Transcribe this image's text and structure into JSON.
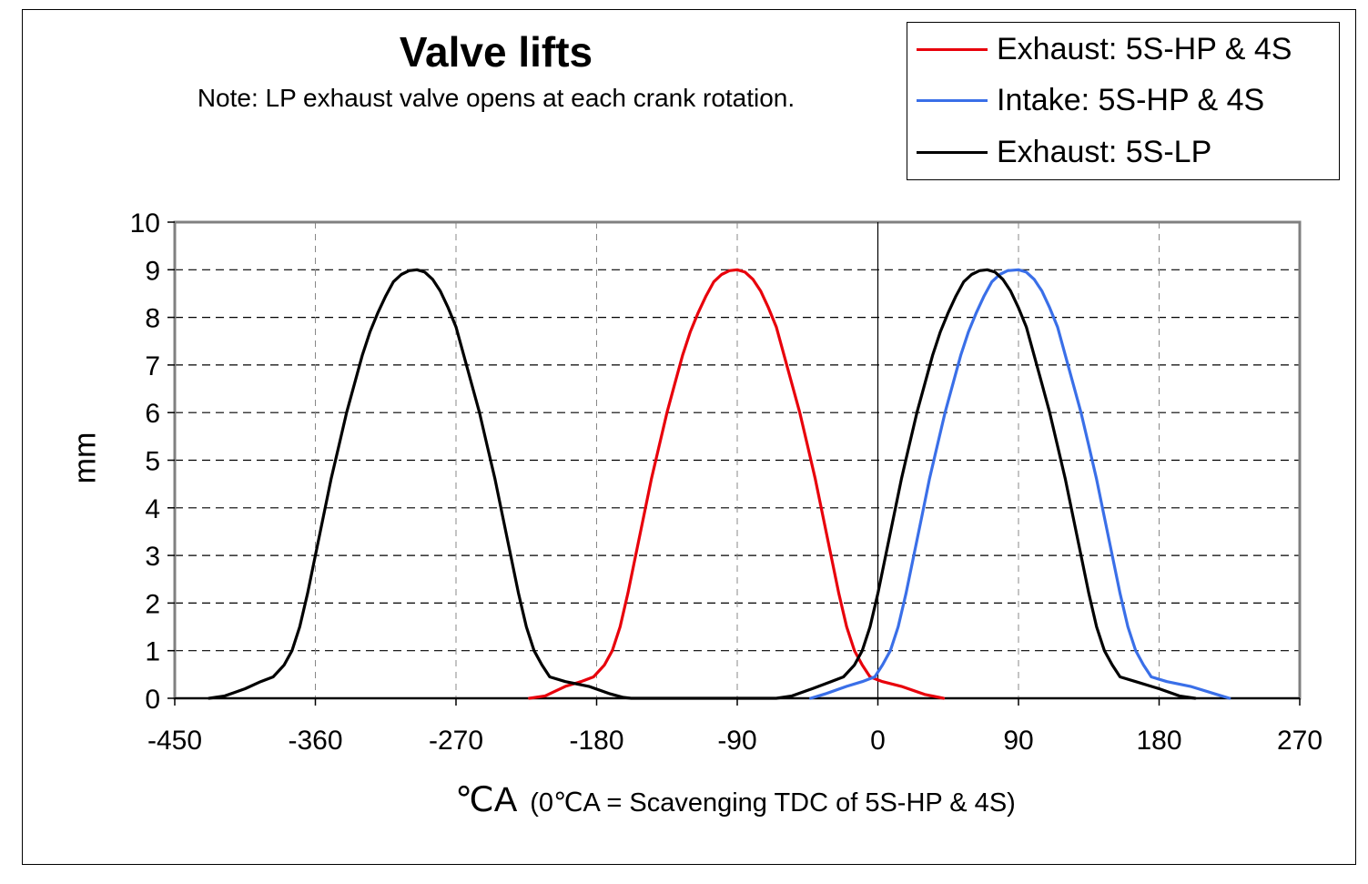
{
  "chart_data": {
    "type": "line",
    "title": "Valve lifts",
    "subtitle": "Note: LP exhaust valve opens at each crank rotation.",
    "xlabel": "℃A",
    "xlabel_note": "(0℃A = Scavenging TDC of 5S-HP & 4S)",
    "ylabel": "mm",
    "xlim": [
      -450,
      270
    ],
    "ylim": [
      0,
      10
    ],
    "x_ticks": [
      -450,
      -360,
      -270,
      -180,
      -90,
      0,
      90,
      180,
      270
    ],
    "y_ticks": [
      0,
      1,
      2,
      3,
      4,
      5,
      6,
      7,
      8,
      9,
      10
    ],
    "x_tick_labels": [
      "-450",
      "-360",
      "-270",
      "-180",
      "-90",
      "0",
      "90",
      "180",
      "270"
    ],
    "y_tick_labels": [
      "0",
      "1",
      "2",
      "3",
      "4",
      "5",
      "6",
      "7",
      "8",
      "9",
      "10"
    ],
    "grid": true,
    "legend_position": "top-right",
    "series": [
      {
        "name": "Exhaust: 5S-HP & 4S",
        "color": "#e8000b",
        "points": [
          [
            -223,
            0
          ],
          [
            -213,
            0.05
          ],
          [
            -200,
            0.25
          ],
          [
            -190,
            0.35
          ],
          [
            -182,
            0.45
          ],
          [
            -175,
            0.7
          ],
          [
            -170,
            1.0
          ],
          [
            -165,
            1.5
          ],
          [
            -160,
            2.2
          ],
          [
            -155,
            3.0
          ],
          [
            -150,
            3.8
          ],
          [
            -145,
            4.6
          ],
          [
            -140,
            5.3
          ],
          [
            -135,
            6.0
          ],
          [
            -130,
            6.6
          ],
          [
            -125,
            7.2
          ],
          [
            -120,
            7.7
          ],
          [
            -115,
            8.1
          ],
          [
            -110,
            8.45
          ],
          [
            -105,
            8.75
          ],
          [
            -100,
            8.9
          ],
          [
            -95,
            8.98
          ],
          [
            -90,
            9.0
          ],
          [
            -85,
            8.95
          ],
          [
            -80,
            8.8
          ],
          [
            -75,
            8.55
          ],
          [
            -70,
            8.2
          ],
          [
            -65,
            7.8
          ],
          [
            -60,
            7.2
          ],
          [
            -55,
            6.6
          ],
          [
            -50,
            6.0
          ],
          [
            -45,
            5.3
          ],
          [
            -40,
            4.6
          ],
          [
            -35,
            3.8
          ],
          [
            -30,
            3.0
          ],
          [
            -25,
            2.2
          ],
          [
            -20,
            1.5
          ],
          [
            -15,
            1.0
          ],
          [
            -10,
            0.7
          ],
          [
            -5,
            0.45
          ],
          [
            3,
            0.35
          ],
          [
            15,
            0.25
          ],
          [
            30,
            0.08
          ],
          [
            42,
            0
          ]
        ]
      },
      {
        "name": "Intake: 5S-HP & 4S",
        "color": "#3a6fe8",
        "points": [
          [
            -43,
            0
          ],
          [
            -33,
            0.1
          ],
          [
            -20,
            0.25
          ],
          [
            -10,
            0.35
          ],
          [
            -2,
            0.45
          ],
          [
            3,
            0.7
          ],
          [
            8,
            1.0
          ],
          [
            13,
            1.5
          ],
          [
            18,
            2.2
          ],
          [
            23,
            3.0
          ],
          [
            28,
            3.8
          ],
          [
            33,
            4.6
          ],
          [
            38,
            5.3
          ],
          [
            43,
            6.0
          ],
          [
            48,
            6.6
          ],
          [
            53,
            7.2
          ],
          [
            58,
            7.7
          ],
          [
            63,
            8.1
          ],
          [
            68,
            8.45
          ],
          [
            73,
            8.75
          ],
          [
            78,
            8.9
          ],
          [
            83,
            8.98
          ],
          [
            90,
            9.0
          ],
          [
            95,
            8.95
          ],
          [
            100,
            8.8
          ],
          [
            105,
            8.55
          ],
          [
            110,
            8.2
          ],
          [
            115,
            7.8
          ],
          [
            120,
            7.2
          ],
          [
            125,
            6.6
          ],
          [
            130,
            6.0
          ],
          [
            135,
            5.3
          ],
          [
            140,
            4.6
          ],
          [
            145,
            3.8
          ],
          [
            150,
            3.0
          ],
          [
            155,
            2.2
          ],
          [
            160,
            1.5
          ],
          [
            165,
            1.0
          ],
          [
            170,
            0.7
          ],
          [
            175,
            0.45
          ],
          [
            185,
            0.35
          ],
          [
            200,
            0.25
          ],
          [
            215,
            0.1
          ],
          [
            225,
            0
          ]
        ]
      },
      {
        "name": "Exhaust: 5S-LP",
        "color": "#000000",
        "points": [
          [
            -428,
            0
          ],
          [
            -418,
            0.05
          ],
          [
            -405,
            0.2
          ],
          [
            -395,
            0.35
          ],
          [
            -387,
            0.45
          ],
          [
            -380,
            0.7
          ],
          [
            -375,
            1.0
          ],
          [
            -370,
            1.5
          ],
          [
            -365,
            2.2
          ],
          [
            -360,
            3.0
          ],
          [
            -355,
            3.8
          ],
          [
            -350,
            4.6
          ],
          [
            -345,
            5.3
          ],
          [
            -340,
            6.0
          ],
          [
            -335,
            6.6
          ],
          [
            -330,
            7.2
          ],
          [
            -325,
            7.7
          ],
          [
            -320,
            8.1
          ],
          [
            -315,
            8.45
          ],
          [
            -310,
            8.75
          ],
          [
            -305,
            8.9
          ],
          [
            -300,
            8.98
          ],
          [
            -295,
            9.0
          ],
          [
            -290,
            8.95
          ],
          [
            -285,
            8.8
          ],
          [
            -280,
            8.55
          ],
          [
            -275,
            8.2
          ],
          [
            -270,
            7.8
          ],
          [
            -265,
            7.2
          ],
          [
            -260,
            6.6
          ],
          [
            -255,
            6.0
          ],
          [
            -250,
            5.3
          ],
          [
            -245,
            4.6
          ],
          [
            -240,
            3.8
          ],
          [
            -235,
            3.0
          ],
          [
            -230,
            2.2
          ],
          [
            -225,
            1.5
          ],
          [
            -220,
            1.0
          ],
          [
            -215,
            0.7
          ],
          [
            -210,
            0.45
          ],
          [
            -200,
            0.35
          ],
          [
            -185,
            0.25
          ],
          [
            -172,
            0.1
          ],
          [
            -163,
            0.02
          ],
          [
            -158,
            0
          ],
          [
            -65,
            0
          ],
          [
            -55,
            0.05
          ],
          [
            -42,
            0.2
          ],
          [
            -30,
            0.35
          ],
          [
            -22,
            0.45
          ],
          [
            -15,
            0.7
          ],
          [
            -10,
            1.0
          ],
          [
            -5,
            1.5
          ],
          [
            0,
            2.2
          ],
          [
            5,
            3.0
          ],
          [
            10,
            3.8
          ],
          [
            15,
            4.6
          ],
          [
            20,
            5.3
          ],
          [
            25,
            6.0
          ],
          [
            30,
            6.6
          ],
          [
            35,
            7.2
          ],
          [
            40,
            7.7
          ],
          [
            45,
            8.1
          ],
          [
            50,
            8.45
          ],
          [
            55,
            8.75
          ],
          [
            60,
            8.9
          ],
          [
            65,
            8.98
          ],
          [
            70,
            9.0
          ],
          [
            75,
            8.95
          ],
          [
            80,
            8.8
          ],
          [
            85,
            8.55
          ],
          [
            90,
            8.2
          ],
          [
            95,
            7.8
          ],
          [
            100,
            7.2
          ],
          [
            105,
            6.6
          ],
          [
            110,
            6.0
          ],
          [
            115,
            5.3
          ],
          [
            120,
            4.6
          ],
          [
            125,
            3.8
          ],
          [
            130,
            3.0
          ],
          [
            135,
            2.2
          ],
          [
            140,
            1.5
          ],
          [
            145,
            1.0
          ],
          [
            150,
            0.7
          ],
          [
            155,
            0.45
          ],
          [
            165,
            0.35
          ],
          [
            180,
            0.2
          ],
          [
            193,
            0.05
          ],
          [
            203,
            0
          ]
        ]
      }
    ]
  }
}
